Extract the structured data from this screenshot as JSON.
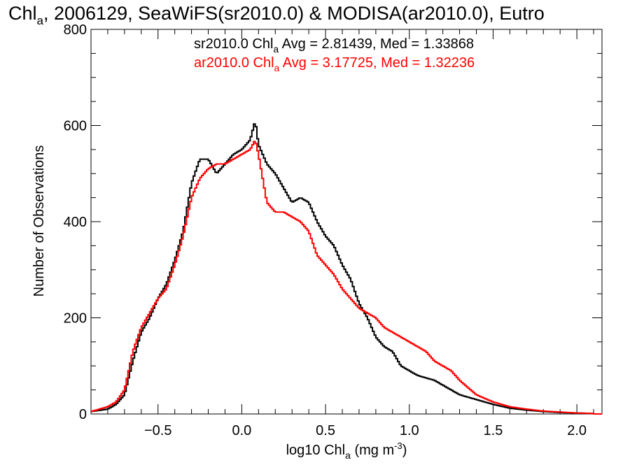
{
  "chart_data": {
    "type": "line",
    "title_parts": {
      "lead": "Chl",
      "sub": "a",
      "rest": ", 2006129, SeaWiFS(sr2010.0) & MODISA(ar2010.0), Eutro"
    },
    "xlabel_parts": {
      "lead": "log10 Chl",
      "sub": "a",
      "mid": " (mg m",
      "sup": "-3",
      "tail": ")"
    },
    "ylabel": "Number of Observations",
    "xlim": [
      -0.9,
      2.15
    ],
    "ylim": [
      0,
      800
    ],
    "x_ticks": [
      -0.5,
      0.0,
      0.5,
      1.0,
      1.5,
      2.0
    ],
    "x_tick_labels": [
      "−0.5",
      "0.0",
      "0.5",
      "1.0",
      "1.5",
      "2.0"
    ],
    "y_ticks": [
      0,
      200,
      400,
      600,
      800
    ],
    "y_tick_labels": [
      "0",
      "200",
      "400",
      "600",
      "800"
    ],
    "grid": false,
    "legend_position": "top-right",
    "annotations": [
      {
        "lead": "sr2010.0 Chl",
        "sub": "a",
        "rest": " Avg = 2.81439, Med = 1.33868",
        "color": "#000000"
      },
      {
        "lead": "ar2010.0 Chl",
        "sub": "a",
        "rest": " Avg = 3.17725, Med = 1.32236",
        "color": "#ff0000"
      }
    ],
    "series": [
      {
        "color": "#000000",
        "x": [
          -0.9,
          -0.8,
          -0.75,
          -0.7,
          -0.65,
          -0.6,
          -0.55,
          -0.5,
          -0.45,
          -0.4,
          -0.35,
          -0.3,
          -0.25,
          -0.2,
          -0.15,
          -0.1,
          -0.05,
          0.0,
          0.05,
          0.08,
          0.1,
          0.15,
          0.2,
          0.25,
          0.3,
          0.35,
          0.4,
          0.45,
          0.5,
          0.55,
          0.6,
          0.65,
          0.7,
          0.75,
          0.8,
          0.85,
          0.9,
          0.95,
          1.0,
          1.05,
          1.1,
          1.15,
          1.2,
          1.25,
          1.3,
          1.4,
          1.5,
          1.6,
          1.7,
          1.8,
          1.9,
          2.0,
          2.1
        ],
        "y": [
          5,
          10,
          20,
          40,
          110,
          170,
          200,
          240,
          270,
          320,
          380,
          480,
          530,
          530,
          500,
          520,
          540,
          550,
          570,
          610,
          560,
          520,
          500,
          470,
          440,
          450,
          440,
          400,
          370,
          350,
          310,
          280,
          230,
          200,
          160,
          140,
          130,
          100,
          90,
          80,
          75,
          70,
          60,
          50,
          40,
          30,
          20,
          12,
          8,
          5,
          3,
          2,
          1
        ]
      },
      {
        "color": "#ff0000",
        "x": [
          -0.9,
          -0.8,
          -0.75,
          -0.7,
          -0.65,
          -0.6,
          -0.55,
          -0.5,
          -0.45,
          -0.4,
          -0.35,
          -0.3,
          -0.25,
          -0.2,
          -0.15,
          -0.1,
          -0.05,
          0.0,
          0.05,
          0.08,
          0.1,
          0.15,
          0.2,
          0.25,
          0.3,
          0.35,
          0.4,
          0.45,
          0.5,
          0.55,
          0.6,
          0.65,
          0.7,
          0.75,
          0.8,
          0.85,
          0.9,
          0.95,
          1.0,
          1.05,
          1.1,
          1.15,
          1.2,
          1.25,
          1.3,
          1.4,
          1.5,
          1.6,
          1.7,
          1.8,
          1.9,
          2.0,
          2.1
        ],
        "y": [
          5,
          15,
          25,
          50,
          130,
          180,
          210,
          240,
          260,
          310,
          370,
          450,
          490,
          510,
          520,
          520,
          530,
          540,
          550,
          570,
          540,
          440,
          420,
          420,
          410,
          400,
          380,
          330,
          310,
          290,
          260,
          240,
          220,
          210,
          200,
          180,
          170,
          160,
          150,
          140,
          130,
          110,
          100,
          90,
          70,
          40,
          25,
          15,
          10,
          6,
          4,
          2,
          1
        ]
      }
    ]
  }
}
